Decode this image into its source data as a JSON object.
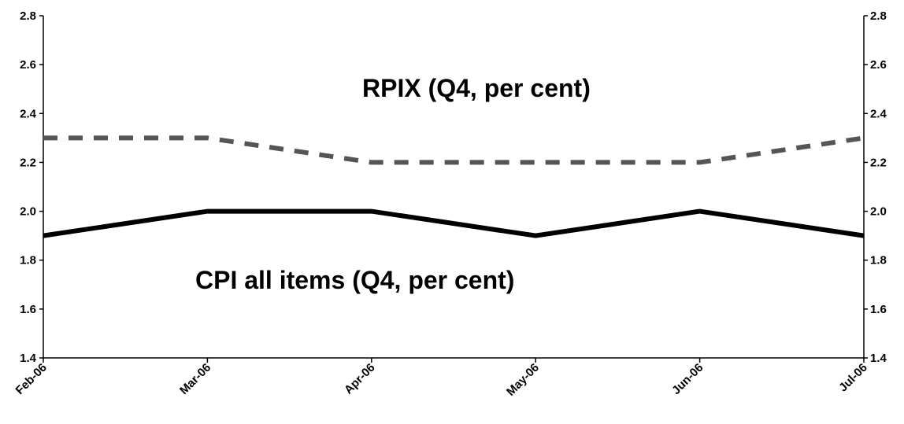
{
  "chart_data": {
    "type": "line",
    "categories": [
      "Feb-06",
      "Mar-06",
      "Apr-06",
      "May-06",
      "Jun-06",
      "Jul-06"
    ],
    "ylim": [
      1.4,
      2.8
    ],
    "y_ticks": [
      "1.4",
      "1.6",
      "1.8",
      "2.0",
      "2.2",
      "2.4",
      "2.6",
      "2.8"
    ],
    "y_axes": "left and right",
    "grid": false,
    "series": [
      {
        "name": "RPIX (Q4, per cent)",
        "values": [
          2.3,
          2.3,
          2.2,
          2.2,
          2.2,
          2.3
        ],
        "color": "#555555",
        "style": "dashed"
      },
      {
        "name": "CPI all items (Q4, per cent)",
        "values": [
          1.9,
          2.0,
          2.0,
          1.9,
          2.0,
          1.9
        ],
        "color": "#000000",
        "style": "solid"
      }
    ]
  }
}
